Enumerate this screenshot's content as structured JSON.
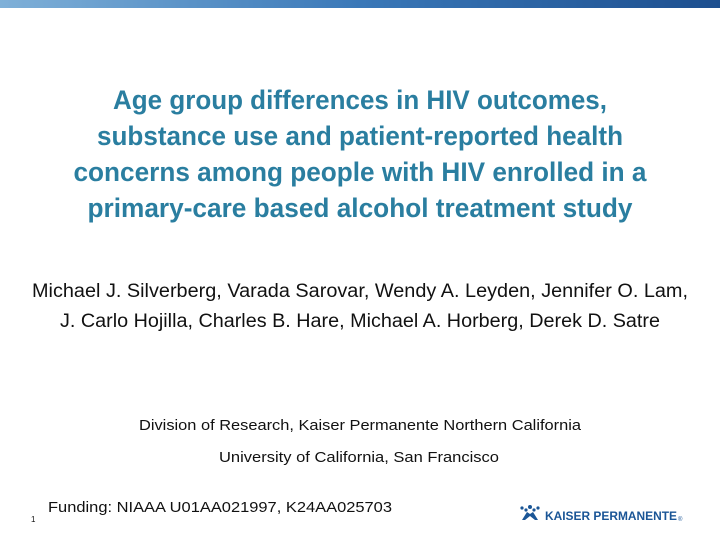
{
  "title": {
    "lines": [
      "Age group differences in HIV outcomes,",
      "substance use and patient-reported health",
      "concerns among people with HIV enrolled in a",
      "primary-care based alcohol treatment study"
    ]
  },
  "authors": {
    "lines": [
      "Michael J. Silverberg, Varada Sarovar, Wendy A. Leyden, Jennifer O. Lam,",
      "J. Carlo Hojilla, Charles B. Hare, Michael A. Horberg, Derek D. Satre"
    ]
  },
  "affiliations": [
    "Division of Research, Kaiser Permanente Northern California",
    "University of California, San Francisco"
  ],
  "funding": "Funding: NIAAA U01AA021997, K24AA025703",
  "slide_number": "1",
  "logo": {
    "text": "KAISER PERMANENTE",
    "mark": "®"
  }
}
